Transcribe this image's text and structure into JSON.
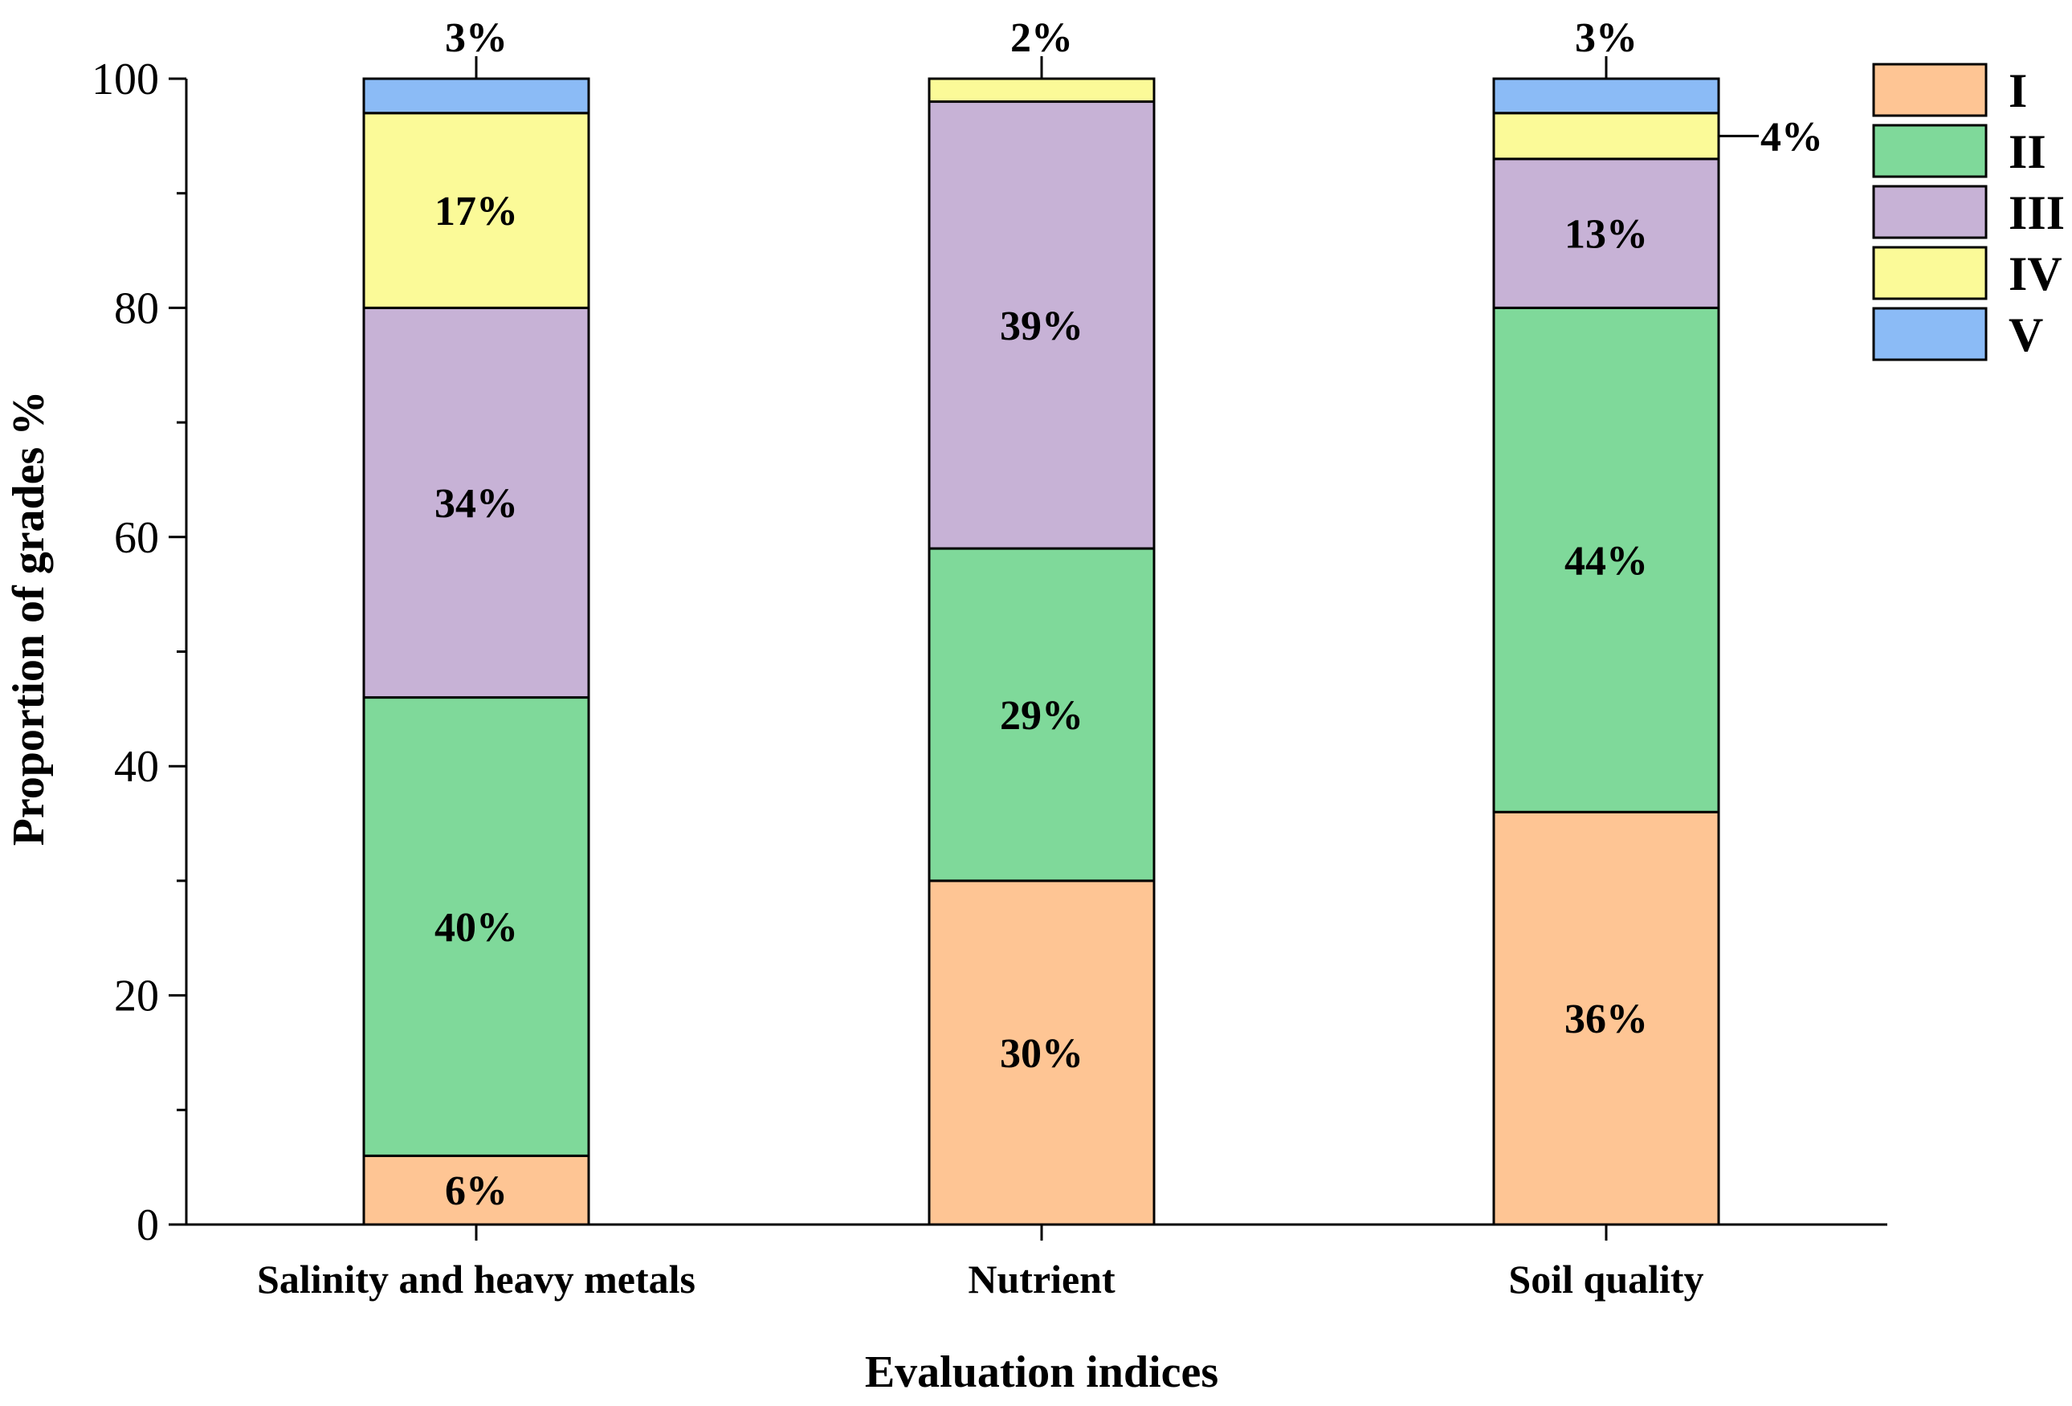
{
  "chart_data": {
    "type": "bar",
    "stacked": true,
    "title": "",
    "xlabel": "Evaluation indices",
    "ylabel": "Proportion of grades %",
    "ylim": [
      0,
      100
    ],
    "yticks": [
      0,
      20,
      40,
      60,
      80,
      100
    ],
    "categories": [
      "Salinity and heavy metals",
      "Nutrient",
      "Soil quality"
    ],
    "series": [
      {
        "name": "I",
        "color": "#FEC594",
        "values": [
          6,
          30,
          36
        ]
      },
      {
        "name": "II",
        "color": "#7FD99A",
        "values": [
          40,
          29,
          44
        ]
      },
      {
        "name": "III",
        "color": "#C7B2D6",
        "values": [
          34,
          39,
          13
        ]
      },
      {
        "name": "IV",
        "color": "#FBFA98",
        "values": [
          17,
          2,
          4
        ]
      },
      {
        "name": "V",
        "color": "#8BBBF6",
        "values": [
          3,
          0,
          3
        ]
      }
    ],
    "segment_labels": [
      [
        "6%",
        "40%",
        "34%",
        "17%",
        "3%"
      ],
      [
        "30%",
        "29%",
        "39%",
        "2%",
        ""
      ],
      [
        "36%",
        "44%",
        "13%",
        "4%",
        "3%"
      ]
    ],
    "legend": {
      "position": "top-right",
      "entries": [
        "I",
        "II",
        "III",
        "IV",
        "V"
      ]
    }
  }
}
